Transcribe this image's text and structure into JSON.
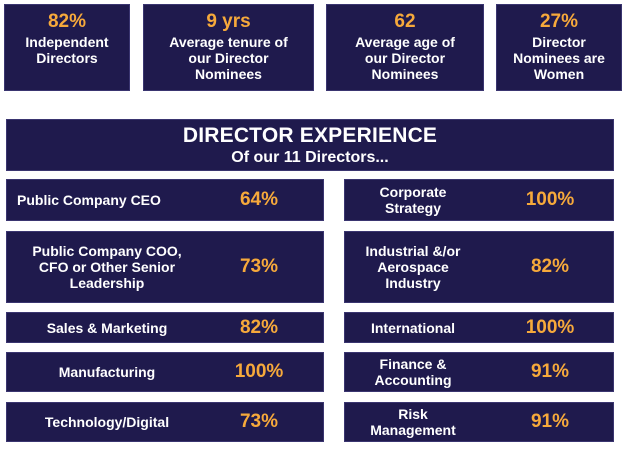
{
  "stats": [
    {
      "value": "82%",
      "label_lines": [
        "Independent",
        "Directors"
      ]
    },
    {
      "value": "9 yrs",
      "label_lines": [
        "Average tenure of",
        "our Director",
        "Nominees"
      ]
    },
    {
      "value": "62",
      "label_lines": [
        "Average age  of",
        "our Director",
        "Nominees"
      ]
    },
    {
      "value": "27%",
      "label_lines": [
        "Director",
        "Nominees are",
        "Women"
      ]
    }
  ],
  "experience": {
    "title": "DIRECTOR EXPERIENCE",
    "subtitle": "Of our 11 Directors...",
    "left": [
      {
        "label_lines": [
          "Public Company CEO"
        ],
        "value": "64%"
      },
      {
        "label_lines": [
          "Public Company COO,",
          "CFO or Other Senior",
          "Leadership"
        ],
        "value": "73%"
      },
      {
        "label_lines": [
          "Sales & Marketing"
        ],
        "value": "82%"
      },
      {
        "label_lines": [
          "Manufacturing"
        ],
        "value": "100%"
      },
      {
        "label_lines": [
          "Technology/Digital"
        ],
        "value": "73%"
      }
    ],
    "right": [
      {
        "label_lines": [
          "Corporate",
          "Strategy"
        ],
        "value": "100%"
      },
      {
        "label_lines": [
          "Industrial &/or",
          "Aerospace",
          "Industry"
        ],
        "value": "82%"
      },
      {
        "label_lines": [
          "International"
        ],
        "value": "100%"
      },
      {
        "label_lines": [
          "Finance &",
          "Accounting"
        ],
        "value": "91%"
      },
      {
        "label_lines": [
          "Risk",
          "Management"
        ],
        "value": "91%"
      }
    ]
  },
  "colors": {
    "panel": "#1f1a4d",
    "accent": "#f6a93b",
    "text": "#ffffff"
  }
}
